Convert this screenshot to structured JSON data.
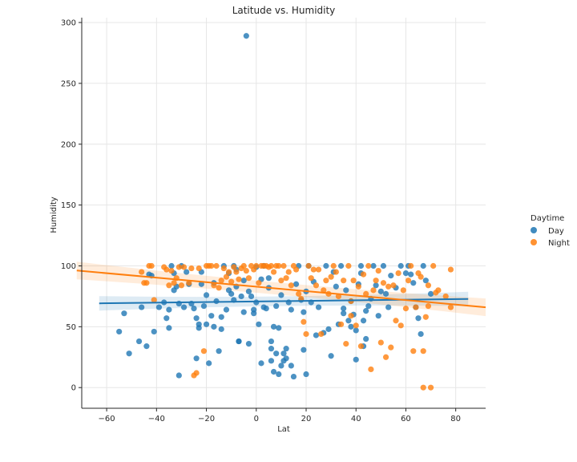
{
  "chart_data": {
    "type": "scatter",
    "title": "Latitude vs. Humidity",
    "xlabel": "Lat",
    "ylabel": "Humidity",
    "xlim": [
      -70,
      92
    ],
    "ylim": [
      -17,
      304
    ],
    "x_ticks": [
      -60,
      -40,
      -20,
      0,
      20,
      40,
      60,
      80
    ],
    "y_ticks": [
      0,
      50,
      100,
      150,
      200,
      250,
      300
    ],
    "grid": true,
    "legend": {
      "title": "Daytime",
      "position": "right"
    },
    "series": [
      {
        "name": "Day",
        "color": "#1f77b4",
        "points": [
          [
            -55,
            46
          ],
          [
            -53,
            61
          ],
          [
            -51,
            28
          ],
          [
            -47,
            38
          ],
          [
            -46,
            66
          ],
          [
            -44,
            34
          ],
          [
            -43,
            93
          ],
          [
            -42,
            92
          ],
          [
            -41,
            46
          ],
          [
            -39,
            66
          ],
          [
            -37,
            70
          ],
          [
            -36,
            57
          ],
          [
            -35,
            64
          ],
          [
            -35,
            49
          ],
          [
            -34,
            100
          ],
          [
            -33,
            80
          ],
          [
            -33,
            94
          ],
          [
            -32,
            83
          ],
          [
            -31,
            69
          ],
          [
            -31,
            10
          ],
          [
            -30,
            100
          ],
          [
            -29,
            66
          ],
          [
            -28,
            95
          ],
          [
            -27,
            85
          ],
          [
            -26,
            69
          ],
          [
            -25,
            65
          ],
          [
            -24,
            24
          ],
          [
            -24,
            57
          ],
          [
            -23,
            49
          ],
          [
            -23,
            52
          ],
          [
            -22,
            95
          ],
          [
            -22,
            85
          ],
          [
            -21,
            67
          ],
          [
            -20,
            76
          ],
          [
            -20,
            52
          ],
          [
            -19,
            20
          ],
          [
            -18,
            59
          ],
          [
            -17,
            50
          ],
          [
            -17,
            86
          ],
          [
            -16,
            71
          ],
          [
            -15,
            30
          ],
          [
            -14,
            58
          ],
          [
            -14,
            48
          ],
          [
            -13,
            100
          ],
          [
            -12,
            64
          ],
          [
            -11,
            94
          ],
          [
            -11,
            80
          ],
          [
            -10,
            77
          ],
          [
            -9,
            100
          ],
          [
            -9,
            72
          ],
          [
            -8,
            97
          ],
          [
            -8,
            83
          ],
          [
            -7,
            38
          ],
          [
            -7,
            38
          ],
          [
            -6,
            75
          ],
          [
            -5,
            88
          ],
          [
            -5,
            62
          ],
          [
            -4,
            289
          ],
          [
            -3,
            36
          ],
          [
            -3,
            79
          ],
          [
            -2,
            75
          ],
          [
            -1,
            64
          ],
          [
            -1,
            61
          ],
          [
            0,
            99
          ],
          [
            0,
            70
          ],
          [
            1,
            52
          ],
          [
            2,
            20
          ],
          [
            2,
            89
          ],
          [
            3,
            66
          ],
          [
            3,
            100
          ],
          [
            4,
            65
          ],
          [
            5,
            90
          ],
          [
            5,
            82
          ],
          [
            6,
            38
          ],
          [
            6,
            32
          ],
          [
            6,
            22
          ],
          [
            7,
            50
          ],
          [
            7,
            13
          ],
          [
            8,
            67
          ],
          [
            8,
            28
          ],
          [
            9,
            49
          ],
          [
            9,
            11
          ],
          [
            10,
            18
          ],
          [
            10,
            76
          ],
          [
            11,
            22
          ],
          [
            11,
            28
          ],
          [
            12,
            32
          ],
          [
            12,
            24
          ],
          [
            13,
            70
          ],
          [
            14,
            18
          ],
          [
            14,
            64
          ],
          [
            15,
            9
          ],
          [
            16,
            85
          ],
          [
            17,
            100
          ],
          [
            18,
            72
          ],
          [
            19,
            62
          ],
          [
            19,
            31
          ],
          [
            20,
            79
          ],
          [
            20,
            11
          ],
          [
            21,
            100
          ],
          [
            22,
            70
          ],
          [
            23,
            87
          ],
          [
            24,
            43
          ],
          [
            25,
            66
          ],
          [
            27,
            45
          ],
          [
            28,
            100
          ],
          [
            29,
            48
          ],
          [
            30,
            26
          ],
          [
            31,
            95
          ],
          [
            32,
            83
          ],
          [
            33,
            52
          ],
          [
            34,
            100
          ],
          [
            35,
            61
          ],
          [
            35,
            65
          ],
          [
            36,
            80
          ],
          [
            37,
            55
          ],
          [
            38,
            50
          ],
          [
            38,
            71
          ],
          [
            39,
            60
          ],
          [
            40,
            47
          ],
          [
            40,
            23
          ],
          [
            41,
            85
          ],
          [
            42,
            94
          ],
          [
            42,
            100
          ],
          [
            43,
            34
          ],
          [
            43,
            55
          ],
          [
            44,
            40
          ],
          [
            44,
            63
          ],
          [
            45,
            67
          ],
          [
            46,
            73
          ],
          [
            47,
            100
          ],
          [
            48,
            84
          ],
          [
            49,
            59
          ],
          [
            50,
            79
          ],
          [
            51,
            100
          ],
          [
            52,
            77
          ],
          [
            53,
            66
          ],
          [
            54,
            92
          ],
          [
            56,
            82
          ],
          [
            58,
            100
          ],
          [
            60,
            94
          ],
          [
            61,
            100
          ],
          [
            62,
            93
          ],
          [
            63,
            86
          ],
          [
            64,
            66
          ],
          [
            65,
            57
          ],
          [
            66,
            44
          ],
          [
            67,
            100
          ],
          [
            68,
            88
          ],
          [
            70,
            77
          ]
        ],
        "regression": {
          "x": [
            -63,
            85
          ],
          "y": [
            69.2,
            72.8
          ]
        }
      },
      {
        "name": "Night",
        "color": "#ff7f0e",
        "points": [
          [
            -46,
            95
          ],
          [
            -45,
            86
          ],
          [
            -44,
            86
          ],
          [
            -43,
            100
          ],
          [
            -42,
            100
          ],
          [
            -41,
            72
          ],
          [
            -37,
            99
          ],
          [
            -36,
            97
          ],
          [
            -35,
            84
          ],
          [
            -34,
            96
          ],
          [
            -33,
            86
          ],
          [
            -32,
            90
          ],
          [
            -31,
            99
          ],
          [
            -30,
            84
          ],
          [
            -29,
            99
          ],
          [
            -27,
            86
          ],
          [
            -26,
            98
          ],
          [
            -25,
            10
          ],
          [
            -24,
            12
          ],
          [
            -23,
            98
          ],
          [
            -21,
            30
          ],
          [
            -20,
            100
          ],
          [
            -19,
            100
          ],
          [
            -18,
            100
          ],
          [
            -17,
            84
          ],
          [
            -16,
            100
          ],
          [
            -15,
            82
          ],
          [
            -14,
            88
          ],
          [
            -13,
            98
          ],
          [
            -12,
            91
          ],
          [
            -11,
            95
          ],
          [
            -10,
            87
          ],
          [
            -9,
            99
          ],
          [
            -8,
            95
          ],
          [
            -7,
            89
          ],
          [
            -6,
            98
          ],
          [
            -5,
            100
          ],
          [
            -4,
            96
          ],
          [
            -3,
            90
          ],
          [
            -2,
            100
          ],
          [
            -1,
            97
          ],
          [
            0,
            100
          ],
          [
            1,
            86
          ],
          [
            2,
            100
          ],
          [
            3,
            100
          ],
          [
            4,
            100
          ],
          [
            5,
            99
          ],
          [
            6,
            100
          ],
          [
            7,
            95
          ],
          [
            8,
            100
          ],
          [
            9,
            100
          ],
          [
            10,
            88
          ],
          [
            11,
            100
          ],
          [
            12,
            90
          ],
          [
            13,
            95
          ],
          [
            14,
            84
          ],
          [
            15,
            100
          ],
          [
            16,
            97
          ],
          [
            17,
            77
          ],
          [
            18,
            73
          ],
          [
            19,
            54
          ],
          [
            20,
            44
          ],
          [
            21,
            100
          ],
          [
            22,
            90
          ],
          [
            23,
            97
          ],
          [
            24,
            84
          ],
          [
            25,
            97
          ],
          [
            26,
            44
          ],
          [
            27,
            80
          ],
          [
            28,
            88
          ],
          [
            29,
            77
          ],
          [
            30,
            91
          ],
          [
            31,
            100
          ],
          [
            32,
            95
          ],
          [
            33,
            75
          ],
          [
            34,
            52
          ],
          [
            35,
            88
          ],
          [
            36,
            36
          ],
          [
            37,
            100
          ],
          [
            38,
            59
          ],
          [
            38,
            71
          ],
          [
            39,
            88
          ],
          [
            40,
            51
          ],
          [
            41,
            83
          ],
          [
            42,
            34
          ],
          [
            43,
            93
          ],
          [
            44,
            77
          ],
          [
            45,
            100
          ],
          [
            46,
            15
          ],
          [
            47,
            80
          ],
          [
            48,
            88
          ],
          [
            49,
            96
          ],
          [
            50,
            37
          ],
          [
            51,
            86
          ],
          [
            52,
            25
          ],
          [
            53,
            83
          ],
          [
            54,
            33
          ],
          [
            55,
            84
          ],
          [
            56,
            55
          ],
          [
            57,
            94
          ],
          [
            58,
            51
          ],
          [
            59,
            80
          ],
          [
            60,
            65
          ],
          [
            61,
            88
          ],
          [
            62,
            100
          ],
          [
            63,
            30
          ],
          [
            64,
            66
          ],
          [
            65,
            94
          ],
          [
            66,
            91
          ],
          [
            67,
            0
          ],
          [
            67,
            30
          ],
          [
            68,
            58
          ],
          [
            69,
            84
          ],
          [
            69,
            67
          ],
          [
            70,
            0
          ],
          [
            71,
            100
          ],
          [
            72,
            78
          ],
          [
            73,
            80
          ],
          [
            76,
            75
          ],
          [
            78,
            97
          ],
          [
            78,
            66
          ]
        ],
        "regression": {
          "x": [
            -72,
            92
          ],
          "y": [
            96.2,
            66.0
          ]
        }
      }
    ]
  }
}
